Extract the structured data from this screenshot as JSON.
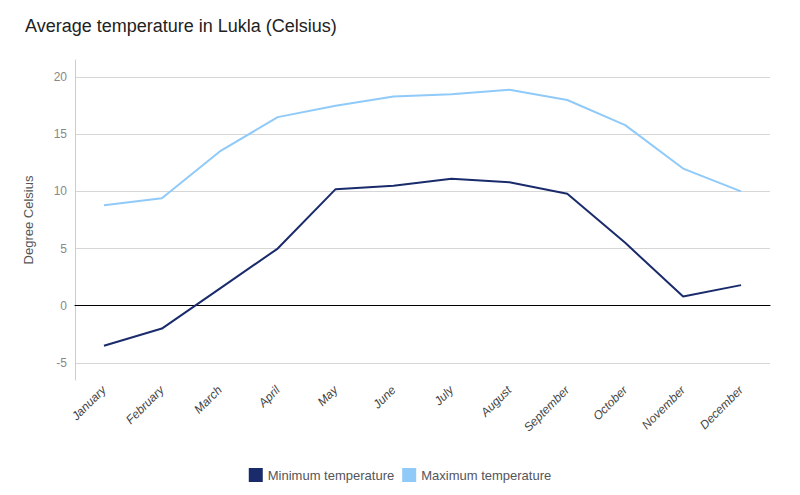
{
  "chart_data": {
    "type": "line",
    "title": "Average temperature in Lukla (Celsius)",
    "ylabel": "Degree Celsius",
    "categories": [
      "January",
      "February",
      "March",
      "April",
      "May",
      "June",
      "July",
      "August",
      "September",
      "October",
      "November",
      "December"
    ],
    "series": [
      {
        "name": "Minimum temperature",
        "color": "#1a2b6b",
        "values": [
          -3.5,
          -2.0,
          1.5,
          5.0,
          10.2,
          10.5,
          11.1,
          10.8,
          9.8,
          5.5,
          0.8,
          1.8
        ]
      },
      {
        "name": "Maximum temperature",
        "color": "#90caf9",
        "values": [
          8.8,
          9.4,
          13.5,
          16.5,
          17.5,
          18.3,
          18.5,
          18.9,
          18.0,
          15.8,
          12.0,
          10.0
        ]
      }
    ],
    "ylim": [
      -6.5,
      21.5
    ],
    "yticks": [
      -5,
      0,
      5,
      10,
      15,
      20
    ],
    "grid": true,
    "legend": "bottom"
  }
}
